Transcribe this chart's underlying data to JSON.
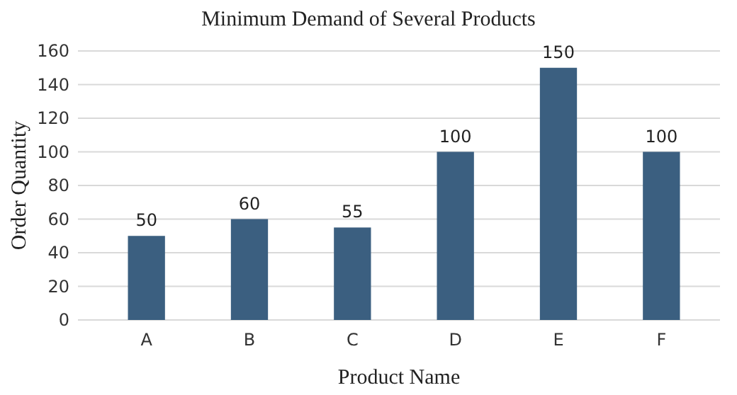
{
  "chart_data": {
    "type": "bar",
    "title": "Minimum Demand of Several Products",
    "xlabel": "Product Name",
    "ylabel": "Order Quantity",
    "categories": [
      "A",
      "B",
      "C",
      "D",
      "E",
      "F"
    ],
    "values": [
      50,
      60,
      55,
      100,
      150,
      100
    ],
    "color": "#3b5f80",
    "ylim": [
      0,
      160
    ],
    "yticks": [
      0,
      20,
      40,
      60,
      80,
      100,
      120,
      140,
      160
    ],
    "grid": "y",
    "data_labels": true
  }
}
